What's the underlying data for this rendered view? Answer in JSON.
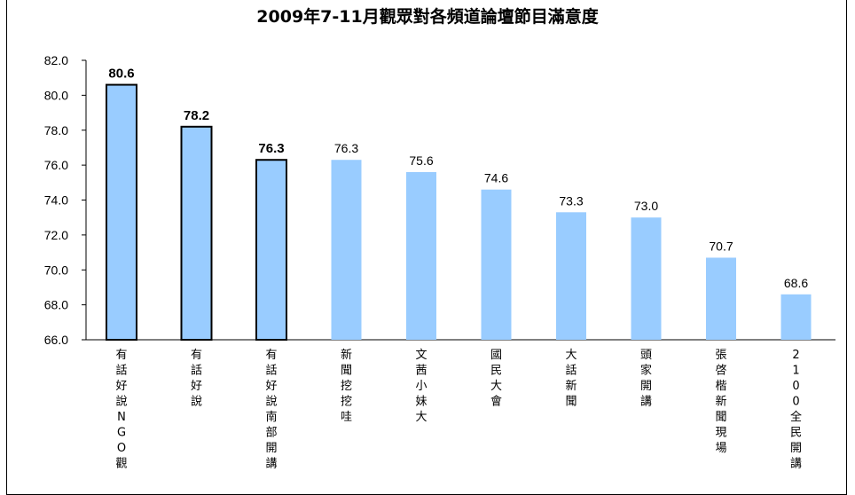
{
  "chart_data": {
    "type": "bar",
    "title": "2009年7-11月觀眾對各頻道論壇節目滿意度",
    "xlabel": "",
    "ylabel": "",
    "ylim": [
      66,
      82
    ],
    "yticks": [
      "66.0",
      "68.0",
      "70.0",
      "72.0",
      "74.0",
      "76.0",
      "78.0",
      "80.0",
      "82.0"
    ],
    "grid": false,
    "categories": [
      "有話好說NGO觀",
      "有話好說",
      "有話好說南部開講",
      "新聞挖挖哇",
      "文茜小妹大",
      "國民大會",
      "大話新聞",
      "頭家開講",
      "張啓楷新聞現場",
      "2100全民開講"
    ],
    "values": [
      80.6,
      78.2,
      76.3,
      76.3,
      75.6,
      74.6,
      73.3,
      73.0,
      70.7,
      68.6
    ],
    "data_labels": [
      "80.6",
      "78.2",
      "76.3",
      "76.3",
      "75.6",
      "74.6",
      "73.3",
      "73.0",
      "70.7",
      "68.6"
    ],
    "highlighted": [
      true,
      true,
      true,
      false,
      false,
      false,
      false,
      false,
      false,
      false
    ],
    "bar_color": "#99CCFF",
    "highlight_border_color": "#000000"
  }
}
